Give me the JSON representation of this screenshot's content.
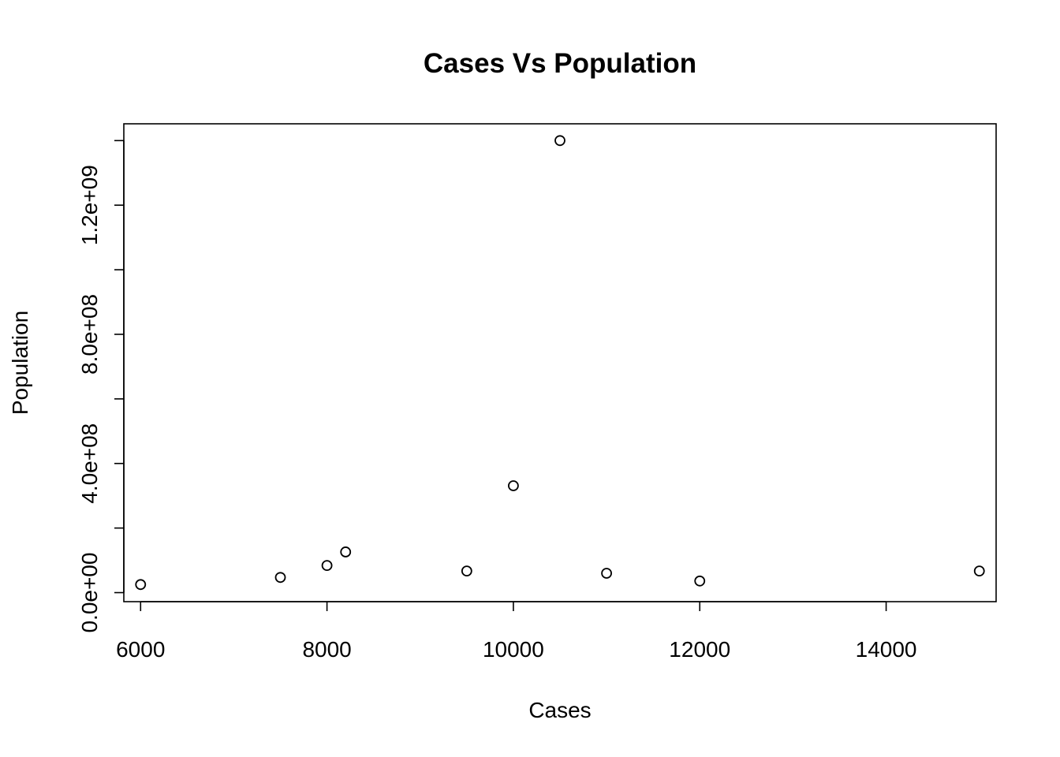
{
  "chart_data": {
    "type": "scatter",
    "title": "Cases Vs Population",
    "xlabel": "Cases",
    "ylabel": "Population",
    "xlim": [
      5820,
      15180
    ],
    "ylim": [
      -28000000,
      1452000000
    ],
    "x_ticks": [
      6000,
      8000,
      10000,
      12000,
      14000
    ],
    "x_tick_labels": [
      "6000",
      "8000",
      "10000",
      "12000",
      "14000"
    ],
    "y_ticks": [
      0,
      200000000,
      400000000,
      600000000,
      800000000,
      1000000000,
      1200000000,
      1400000000
    ],
    "y_tick_labels": [
      "0.0e+00",
      "",
      "4.0e+08",
      "",
      "8.0e+08",
      "",
      "1.2e+09",
      ""
    ],
    "grid": false,
    "legend": "none",
    "point_style": "open-circle",
    "colors": {
      "points": "#000000",
      "axes": "#000000",
      "background": "#ffffff"
    },
    "points": [
      {
        "x": 6000,
        "y": 25000000
      },
      {
        "x": 7500,
        "y": 47000000
      },
      {
        "x": 8000,
        "y": 84000000
      },
      {
        "x": 8200,
        "y": 126000000
      },
      {
        "x": 9500,
        "y": 67000000
      },
      {
        "x": 10000,
        "y": 331000000
      },
      {
        "x": 10500,
        "y": 1400000000
      },
      {
        "x": 11000,
        "y": 60000000
      },
      {
        "x": 12000,
        "y": 36000000
      },
      {
        "x": 15000,
        "y": 67000000
      }
    ]
  }
}
